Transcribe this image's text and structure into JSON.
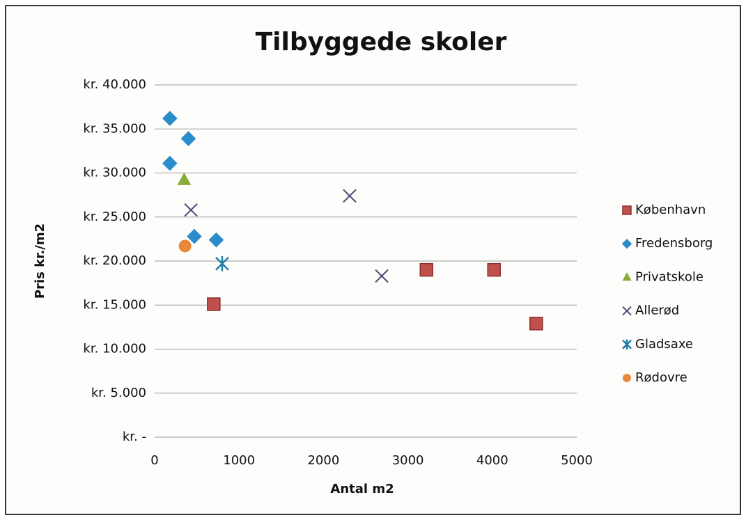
{
  "chart_data": {
    "type": "scatter",
    "title": "Tilbyggede skoler",
    "xlabel": "Antal m2",
    "ylabel": "Pris kr./m2",
    "xlim": [
      0,
      5000
    ],
    "xticks": [
      0,
      1000,
      2000,
      3000,
      4000,
      5000
    ],
    "ylim": [
      0,
      40000
    ],
    "yticks": [
      {
        "value": 0,
        "label": "kr. -"
      },
      {
        "value": 5000,
        "label": "kr. 5.000"
      },
      {
        "value": 10000,
        "label": "kr. 10.000"
      },
      {
        "value": 15000,
        "label": "kr. 15.000"
      },
      {
        "value": 20000,
        "label": "kr. 20.000"
      },
      {
        "value": 25000,
        "label": "kr. 25.000"
      },
      {
        "value": 30000,
        "label": "kr. 30.000"
      },
      {
        "value": 35000,
        "label": "kr. 35.000"
      },
      {
        "value": 40000,
        "label": "kr. 40.000"
      }
    ],
    "grid": true,
    "legend": "right",
    "series": [
      {
        "name": "København",
        "color": "#c0504d",
        "marker": "square",
        "x": [
          700,
          3220,
          4020,
          4520
        ],
        "values": [
          15100,
          19000,
          19000,
          12900
        ]
      },
      {
        "name": "Fredensborg",
        "color": "#2a8cc8",
        "marker": "diamond",
        "x": [
          180,
          400,
          180,
          470,
          730
        ],
        "values": [
          36200,
          33900,
          31100,
          22800,
          22400
        ]
      },
      {
        "name": "Privatskole",
        "color": "#8aab3a",
        "marker": "triangle",
        "x": [
          350
        ],
        "values": [
          29200
        ]
      },
      {
        "name": "Allerød",
        "color": "#4e4a78",
        "marker": "x",
        "x": [
          430,
          2310,
          2690
        ],
        "values": [
          25800,
          27400,
          18300
        ]
      },
      {
        "name": "Gladsaxe",
        "color": "#1f7fa6",
        "marker": "star",
        "x": [
          800
        ],
        "values": [
          19700
        ]
      },
      {
        "name": "Rødovre",
        "color": "#e8883a",
        "marker": "circle",
        "x": [
          360
        ],
        "values": [
          21700
        ]
      }
    ]
  }
}
